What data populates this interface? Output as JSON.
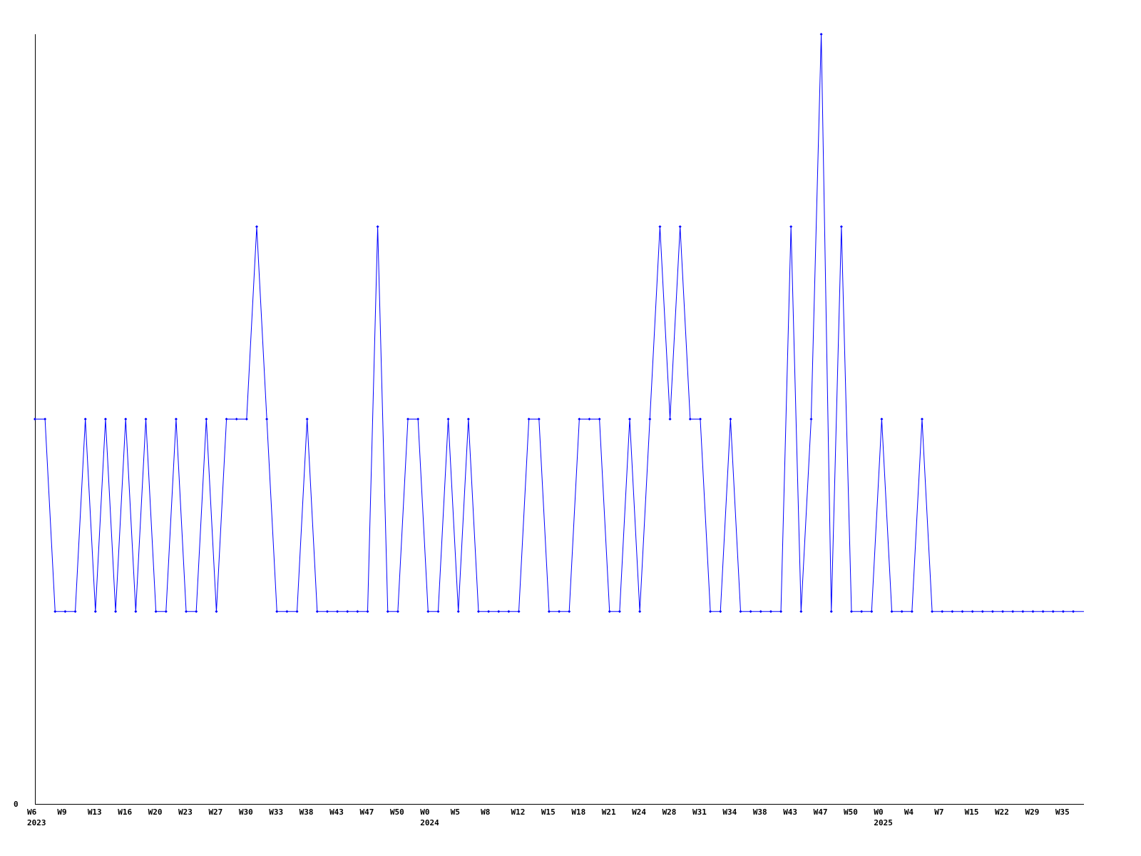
{
  "chart_data": {
    "type": "line",
    "title": "",
    "xlabel": "",
    "ylabel": "",
    "ylim": [
      0,
      4
    ],
    "y_tick_labels": [
      "0"
    ],
    "grid": false,
    "line_color": "#0000ff",
    "axis_color": "#000000",
    "x_tick_labels": [
      "W6",
      "W9",
      "W13",
      "W16",
      "W20",
      "W23",
      "W27",
      "W30",
      "W33",
      "W38",
      "W43",
      "W47",
      "W50",
      "W0",
      "W5",
      "W8",
      "W12",
      "W15",
      "W18",
      "W21",
      "W24",
      "W28",
      "W31",
      "W34",
      "W38",
      "W43",
      "W47",
      "W50",
      "W0",
      "W4",
      "W7",
      "W15",
      "W22",
      "W29",
      "W35"
    ],
    "x_tick_every": 3,
    "year_labels": [
      {
        "label": "2023",
        "tick_index": 0
      },
      {
        "label": "2024",
        "tick_index": 13
      },
      {
        "label": "2025",
        "tick_index": 28
      }
    ],
    "values": [
      2,
      2,
      1,
      1,
      1,
      2,
      1,
      2,
      1,
      2,
      1,
      2,
      1,
      1,
      2,
      1,
      1,
      2,
      1,
      2,
      2,
      2,
      3,
      2,
      1,
      1,
      1,
      2,
      1,
      1,
      1,
      1,
      1,
      1,
      3,
      1,
      1,
      2,
      2,
      1,
      1,
      2,
      1,
      2,
      1,
      1,
      1,
      1,
      1,
      2,
      2,
      1,
      1,
      1,
      2,
      2,
      2,
      1,
      1,
      2,
      1,
      2,
      3,
      2,
      3,
      2,
      2,
      1,
      1,
      2,
      1,
      1,
      1,
      1,
      1,
      3,
      1,
      2,
      4,
      1,
      3,
      1,
      1,
      1,
      2,
      1,
      1,
      1,
      2,
      1,
      1,
      1,
      1,
      1,
      1,
      1,
      1,
      1,
      1,
      1,
      1,
      1,
      1,
      1
    ]
  }
}
